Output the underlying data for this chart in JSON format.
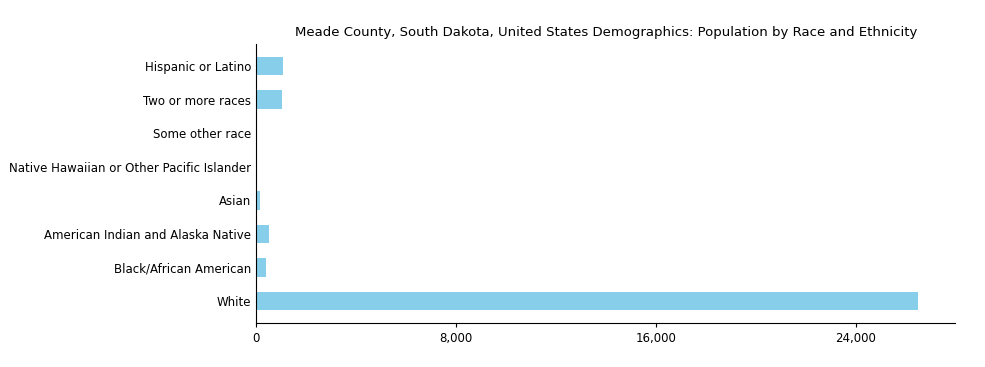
{
  "title": "Meade County, South Dakota, United States Demographics: Population by Race and Ethnicity",
  "categories": [
    "White",
    "Black/African American",
    "American Indian and Alaska Native",
    "Asian",
    "Native Hawaiian or Other Pacific Islander",
    "Some other race",
    "Two or more races",
    "Hispanic or Latino"
  ],
  "values": [
    26500,
    380,
    530,
    170,
    25,
    45,
    1050,
    1080
  ],
  "bar_color": "#87CEEB",
  "xlim": [
    0,
    28000
  ],
  "xticks": [
    0,
    8000,
    16000,
    24000
  ],
  "xtick_labels": [
    "0",
    "8,000",
    "16,000",
    "24,000"
  ],
  "title_fontsize": 9.5,
  "tick_fontsize": 8.5,
  "figsize": [
    9.85,
    3.67
  ],
  "dpi": 100
}
